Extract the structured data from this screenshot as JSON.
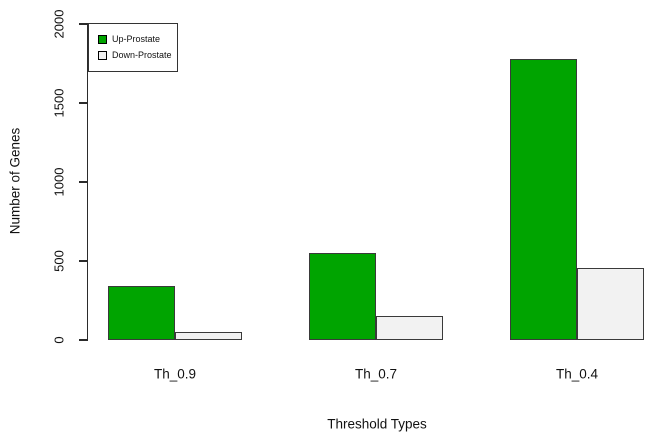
{
  "chart_data": {
    "type": "bar",
    "title": "",
    "categories": [
      "Th_0.9",
      "Th_0.7",
      "Th_0.4"
    ],
    "series": [
      {
        "name": "Up-Prostate",
        "color": "#00a400",
        "values": [
          340,
          550,
          1780
        ]
      },
      {
        "name": "Down-Prostate",
        "color": "#f2f2f2",
        "values": [
          50,
          150,
          455
        ]
      }
    ],
    "xlabel": "Threshold Types",
    "ylabel": "Number of Genes",
    "ylim": [
      0,
      2000
    ],
    "yticks": [
      0,
      500,
      1000,
      1500,
      2000
    ],
    "legend_position": "top-left",
    "grid": false,
    "bar_border_color": "#3a3a3a",
    "accent_green": "#00a400",
    "down_fill": "#f2f2f2"
  }
}
